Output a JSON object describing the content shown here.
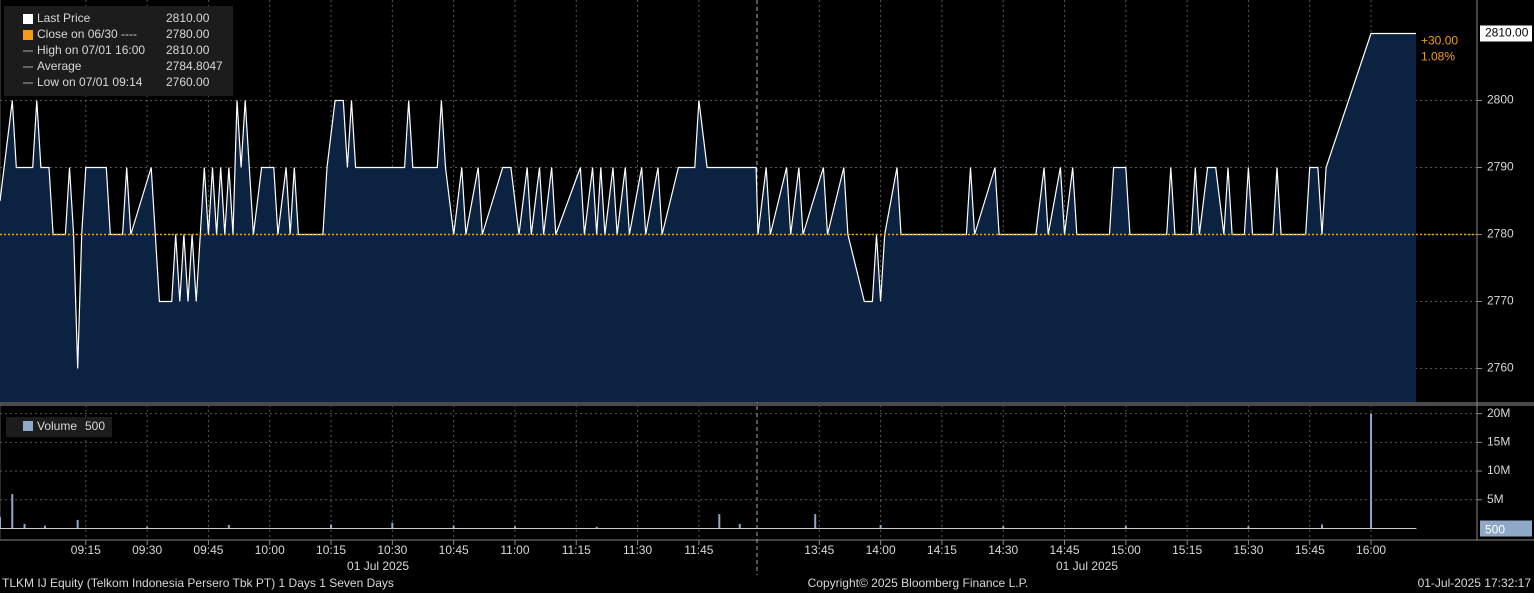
{
  "chart_data": [
    {
      "type": "area",
      "x": [
        "08:54",
        "08:57",
        "08:58",
        "09:02",
        "09:03",
        "09:04",
        "09:06",
        "09:07",
        "09:10",
        "09:11",
        "09:12",
        "09:13",
        "09:14",
        "09:15",
        "09:20",
        "09:21",
        "09:24",
        "09:25",
        "09:26",
        "09:31",
        "09:32",
        "09:33",
        "09:36",
        "09:37",
        "09:38",
        "09:39",
        "09:40",
        "09:41",
        "09:42",
        "09:43",
        "09:44",
        "09:45",
        "09:46",
        "09:47",
        "09:48",
        "09:49",
        "09:50",
        "09:51",
        "09:52",
        "09:53",
        "09:54",
        "09:55",
        "09:56",
        "09:58",
        "10:01",
        "10:02",
        "10:04",
        "10:05",
        "10:06",
        "10:07",
        "10:13",
        "10:14",
        "10:16",
        "10:18",
        "10:19",
        "10:20",
        "10:21",
        "10:33",
        "10:34",
        "10:35",
        "10:41",
        "10:42",
        "10:43",
        "10:45",
        "10:47",
        "10:48",
        "10:51",
        "10:52",
        "10:57",
        "10:59",
        "11:01",
        "11:03",
        "11:04",
        "11:06",
        "11:07",
        "11:09",
        "11:10",
        "11:16",
        "11:17",
        "11:19",
        "11:20",
        "11:21",
        "11:22",
        "11:24",
        "11:25",
        "11:27",
        "11:28",
        "11:31",
        "11:32",
        "11:35",
        "11:36",
        "11:40",
        "11:44",
        "11:45",
        "11:47",
        "11:59",
        "13:30",
        "13:32",
        "13:33",
        "13:37",
        "13:38",
        "13:40",
        "13:41",
        "13:46",
        "13:47",
        "13:51",
        "13:52",
        "13:56",
        "13:58",
        "13:59",
        "14:00",
        "14:01",
        "14:04",
        "14:05",
        "14:21",
        "14:22",
        "14:23",
        "14:28",
        "14:29",
        "14:38",
        "14:40",
        "14:41",
        "14:44",
        "14:45",
        "14:47",
        "14:48",
        "14:56",
        "14:57",
        "15:00",
        "15:01",
        "15:10",
        "15:11",
        "15:12",
        "15:16",
        "15:17",
        "15:18",
        "15:20",
        "15:22",
        "15:24",
        "15:25",
        "15:26",
        "15:29",
        "15:30",
        "15:31",
        "15:36",
        "15:37",
        "15:38",
        "15:44",
        "15:45",
        "15:47",
        "15:48",
        "15:49",
        "16:00",
        "16:11"
      ],
      "series": [
        {
          "name": "Last Price",
          "color": "#ffffff",
          "fill": "#0b2240",
          "values": [
            2785,
            2800,
            2790,
            2790,
            2800,
            2790,
            2790,
            2780,
            2780,
            2790,
            2780,
            2760,
            2780,
            2790,
            2790,
            2780,
            2780,
            2790,
            2780,
            2790,
            2780,
            2770,
            2770,
            2780,
            2770,
            2780,
            2770,
            2780,
            2770,
            2780,
            2790,
            2780,
            2790,
            2780,
            2790,
            2780,
            2790,
            2780,
            2800,
            2790,
            2800,
            2790,
            2780,
            2790,
            2790,
            2780,
            2790,
            2780,
            2790,
            2780,
            2780,
            2790,
            2800,
            2800,
            2790,
            2800,
            2790,
            2790,
            2800,
            2790,
            2790,
            2800,
            2790,
            2780,
            2790,
            2780,
            2790,
            2780,
            2790,
            2790,
            2780,
            2790,
            2780,
            2790,
            2780,
            2790,
            2780,
            2790,
            2780,
            2790,
            2780,
            2790,
            2780,
            2790,
            2780,
            2790,
            2780,
            2790,
            2780,
            2790,
            2780,
            2790,
            2790,
            2800,
            2790,
            2790,
            2780,
            2790,
            2780,
            2790,
            2780,
            2790,
            2780,
            2790,
            2780,
            2790,
            2780,
            2770,
            2770,
            2780,
            2770,
            2780,
            2790,
            2780,
            2780,
            2790,
            2780,
            2790,
            2780,
            2780,
            2790,
            2780,
            2790,
            2780,
            2790,
            2780,
            2780,
            2790,
            2790,
            2780,
            2780,
            2790,
            2780,
            2780,
            2790,
            2780,
            2790,
            2790,
            2780,
            2790,
            2780,
            2780,
            2790,
            2780,
            2780,
            2790,
            2780,
            2780,
            2790,
            2790,
            2780,
            2790,
            2810,
            2810
          ]
        }
      ],
      "ylim": [
        2755,
        2815
      ],
      "yticks": [
        2760,
        2770,
        2780,
        2790,
        2800
      ],
      "xticks": [
        "09:15",
        "09:30",
        "09:45",
        "10:00",
        "10:15",
        "10:30",
        "10:45",
        "11:00",
        "11:15",
        "11:30",
        "11:45",
        "13:45",
        "14:00",
        "14:15",
        "14:30",
        "14:45",
        "15:00",
        "15:15",
        "15:30",
        "15:45",
        "16:00"
      ],
      "date_labels": [
        "01 Jul 2025",
        "01 Jul 2025"
      ],
      "grid": true,
      "legend": {
        "names": [
          "Last Price",
          "Close on 06/30 ----",
          "High on 07/01 16:00",
          "Average",
          "Low on 07/01 09:14"
        ],
        "values": [
          2810,
          2780,
          2810,
          2784.8047,
          2760
        ],
        "value_labels": [
          "2810.00",
          "2780.00",
          "2810.00",
          "2784.8047",
          "2760.00"
        ],
        "colors": [
          "#ffffff",
          "#f39c12",
          "#aaaaaa",
          "#aaaaaa",
          "#aaaaaa"
        ]
      },
      "close_color": "#f39c12",
      "annotations": [
        "+30.00",
        "1.08%"
      ]
    },
    {
      "type": "bar",
      "x": [
        "08:54",
        "08:57",
        "09:00",
        "09:05",
        "09:13",
        "09:30",
        "09:50",
        "10:15",
        "10:30",
        "10:45",
        "11:00",
        "11:20",
        "11:50",
        "11:55",
        "13:44",
        "14:00",
        "14:30",
        "15:00",
        "15:30",
        "15:48",
        "16:00",
        "16:11"
      ],
      "series": [
        {
          "name": "Volume",
          "color": "#8fa8c8",
          "values": [
            2000000,
            6000000,
            800000,
            500000,
            1500000,
            300000,
            600000,
            700000,
            1000000,
            500000,
            400000,
            300000,
            2500000,
            800000,
            2500000,
            600000,
            400000,
            500000,
            400000,
            700000,
            20000000,
            500
          ]
        }
      ],
      "ylim": [
        -2000000,
        21500000
      ],
      "yticks": [
        {
          "value": 5000000,
          "label": "5M"
        },
        {
          "value": 10000000,
          "label": "10M"
        },
        {
          "value": 15000000,
          "label": "15M"
        },
        {
          "value": 20000000,
          "label": "20M"
        }
      ],
      "grid": true
    }
  ],
  "footer": {
    "left": "TLKM IJ Equity (Telkom Indonesia Persero Tbk PT) 1 Days 1 Seven Days",
    "center": "Copyright© 2025 Bloomberg Finance L.P.",
    "right": "01-Jul-2025 17:32:17"
  }
}
